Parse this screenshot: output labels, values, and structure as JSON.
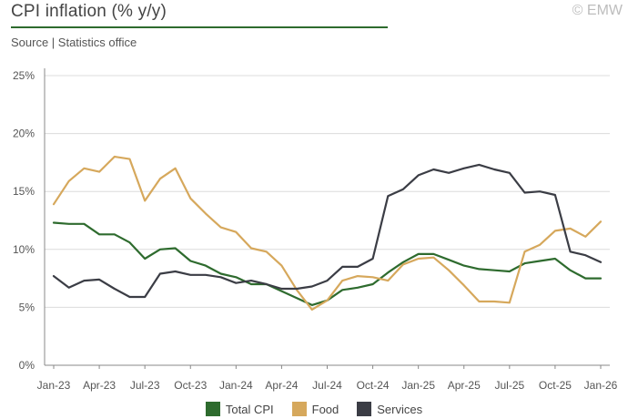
{
  "header": {
    "title": "CPI inflation (% y/y)",
    "source": "Source | Statistics office",
    "watermark": "© EMW"
  },
  "colors": {
    "total_cpi": "#2e6b2e",
    "food": "#d6a85c",
    "services": "#3b3d45",
    "accent": "#2e6b2e",
    "grid": "#dcdcdc",
    "axis": "#888888"
  },
  "chart_data": {
    "type": "line",
    "title": "CPI inflation (% y/y)",
    "xlabel": "",
    "ylabel": "",
    "ylim": [
      0,
      25
    ],
    "yticks": [
      0,
      5,
      10,
      15,
      20,
      25
    ],
    "ytick_labels": [
      "0%",
      "5%",
      "10%",
      "15%",
      "20%",
      "25%"
    ],
    "grid": "horizontal",
    "legend_position": "bottom",
    "x": [
      "Jan-23",
      "Feb-23",
      "Mar-23",
      "Apr-23",
      "May-23",
      "Jun-23",
      "Jul-23",
      "Aug-23",
      "Sep-23",
      "Oct-23",
      "Nov-23",
      "Dec-23",
      "Jan-24",
      "Feb-24",
      "Mar-24",
      "Apr-24",
      "May-24",
      "Jun-24",
      "Jul-24",
      "Aug-24",
      "Sep-24",
      "Oct-24",
      "Nov-24",
      "Dec-24",
      "Jan-25",
      "Feb-25",
      "Mar-25",
      "Apr-25",
      "May-25",
      "Jun-25",
      "Jul-25",
      "Aug-25",
      "Sep-25",
      "Oct-25",
      "Nov-25",
      "Dec-25",
      "Jan-26"
    ],
    "xtick_labels": [
      "Jan-23",
      "Apr-23",
      "Jul-23",
      "Oct-23",
      "Jan-24",
      "Apr-24",
      "Jul-24",
      "Oct-24",
      "Jan-25",
      "Apr-25",
      "Jul-25",
      "Oct-25",
      "Jan-26"
    ],
    "series": [
      {
        "name": "Total CPI",
        "key": "total_cpi",
        "values": [
          12.3,
          12.2,
          12.2,
          11.3,
          11.3,
          10.6,
          9.2,
          10.0,
          10.1,
          9.0,
          8.6,
          7.9,
          7.6,
          7.0,
          7.0,
          6.4,
          5.8,
          5.2,
          5.6,
          6.5,
          6.7,
          7.0,
          8.0,
          8.9,
          9.6,
          9.6,
          9.1,
          8.6,
          8.3,
          8.2,
          8.1,
          8.8,
          9.0,
          9.2,
          8.2,
          7.5,
          7.5
        ]
      },
      {
        "name": "Food",
        "key": "food",
        "values": [
          13.9,
          15.9,
          17.0,
          16.7,
          18.0,
          17.8,
          14.2,
          16.1,
          17.0,
          14.4,
          13.1,
          11.9,
          11.5,
          10.1,
          9.8,
          8.6,
          6.5,
          4.8,
          5.6,
          7.3,
          7.7,
          7.6,
          7.3,
          8.7,
          9.2,
          9.3,
          8.2,
          6.9,
          5.5,
          5.5,
          5.4,
          9.8,
          10.4,
          11.6,
          11.8,
          11.1,
          12.4
        ]
      },
      {
        "name": "Services",
        "key": "services",
        "values": [
          7.7,
          6.7,
          7.3,
          7.4,
          6.6,
          5.9,
          5.9,
          7.9,
          8.1,
          7.8,
          7.8,
          7.6,
          7.1,
          7.3,
          7.0,
          6.6,
          6.6,
          6.8,
          7.3,
          8.5,
          8.5,
          9.2,
          14.6,
          15.2,
          16.4,
          16.9,
          16.6,
          17.0,
          17.3,
          16.9,
          16.6,
          14.9,
          15.0,
          14.7,
          9.8,
          9.5,
          8.9
        ]
      }
    ]
  }
}
